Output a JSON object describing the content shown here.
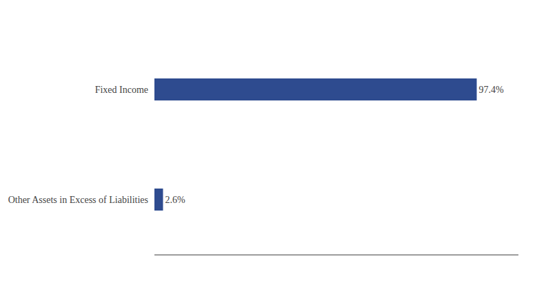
{
  "chart_data": {
    "type": "bar",
    "orientation": "horizontal",
    "categories": [
      "Fixed Income",
      "Other Assets in Excess of Liabilities"
    ],
    "values": [
      97.4,
      2.6
    ],
    "value_labels": [
      "97.4%",
      "2.6%"
    ],
    "data_labels": true,
    "color": "#2e4b8f",
    "xlim": [
      0,
      110
    ],
    "tick_labels": "y",
    "grid": false
  }
}
